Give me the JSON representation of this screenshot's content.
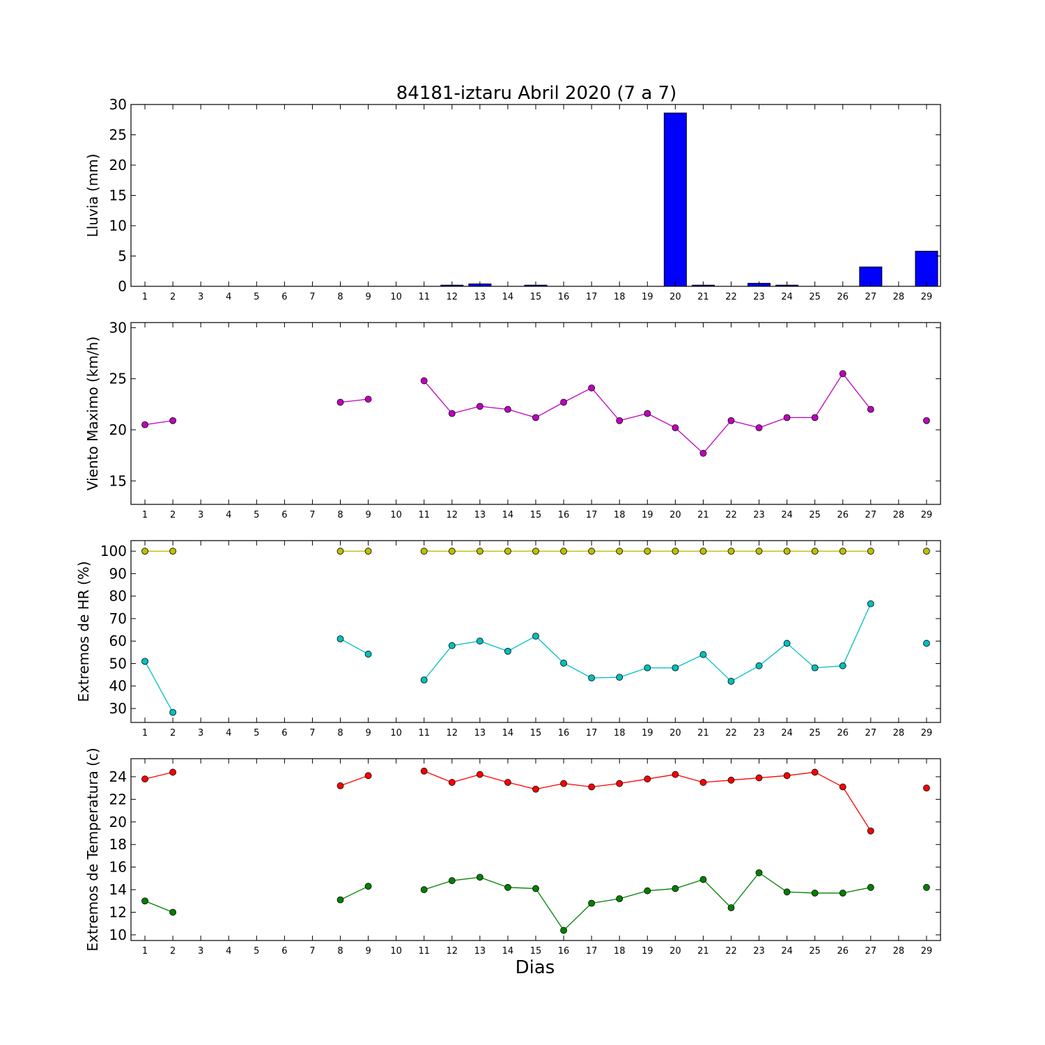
{
  "chart_data": [
    {
      "id": "rain",
      "type": "bar",
      "title": "84181-iztaru Abril 2020  (7 a 7)",
      "ylabel": "Lluvia (mm)",
      "xlabel": "",
      "x": [
        1,
        2,
        3,
        4,
        5,
        6,
        7,
        8,
        9,
        10,
        11,
        12,
        13,
        14,
        15,
        16,
        17,
        18,
        19,
        20,
        21,
        22,
        23,
        24,
        25,
        26,
        27,
        28,
        29
      ],
      "ylim": [
        0,
        30
      ],
      "yticks": [
        0,
        5,
        10,
        15,
        20,
        25,
        30
      ],
      "series": [
        {
          "color": "#0000ff",
          "values": [
            0,
            0,
            0,
            0,
            0,
            0,
            0,
            0,
            0,
            0,
            0,
            0.2,
            0.4,
            0,
            0.2,
            0,
            0,
            0,
            0,
            28.6,
            0.2,
            0,
            0.5,
            0.2,
            0,
            0,
            3.2,
            null,
            5.8
          ]
        }
      ]
    },
    {
      "id": "wind",
      "type": "line",
      "title": "",
      "ylabel": "Viento Maximo (km/h)",
      "xlabel": "",
      "x": [
        1,
        2,
        3,
        4,
        5,
        6,
        7,
        8,
        9,
        10,
        11,
        12,
        13,
        14,
        15,
        16,
        17,
        18,
        19,
        20,
        21,
        22,
        23,
        24,
        25,
        26,
        27,
        28,
        29
      ],
      "ylim": [
        12.7,
        30.5
      ],
      "yticks": [
        15,
        20,
        25,
        30
      ],
      "series": [
        {
          "color": "#bf00bf",
          "values": [
            20.5,
            20.9,
            null,
            null,
            null,
            null,
            null,
            22.7,
            23.0,
            null,
            24.8,
            21.6,
            22.3,
            22.0,
            21.2,
            22.7,
            24.1,
            20.9,
            21.6,
            20.2,
            17.7,
            20.9,
            20.2,
            21.2,
            21.2,
            25.5,
            22.0,
            null,
            20.9
          ]
        }
      ]
    },
    {
      "id": "hr",
      "type": "line",
      "title": "",
      "ylabel": "Extremos de HR (%)",
      "xlabel": "",
      "x": [
        1,
        2,
        3,
        4,
        5,
        6,
        7,
        8,
        9,
        10,
        11,
        12,
        13,
        14,
        15,
        16,
        17,
        18,
        19,
        20,
        21,
        22,
        23,
        24,
        25,
        26,
        27,
        28,
        29
      ],
      "ylim": [
        23.8,
        104.7
      ],
      "yticks": [
        30,
        40,
        50,
        60,
        70,
        80,
        90,
        100
      ],
      "series": [
        {
          "color": "#bfbf00",
          "values": [
            100,
            100,
            null,
            null,
            null,
            null,
            null,
            100,
            100,
            null,
            100,
            100,
            100,
            100,
            100,
            100,
            100,
            100,
            100,
            100,
            100,
            100,
            100,
            100,
            100,
            100,
            100,
            null,
            100
          ]
        },
        {
          "color": "#00bfbf",
          "values": [
            51,
            28.3,
            null,
            null,
            null,
            null,
            null,
            61,
            54.2,
            null,
            42.7,
            58,
            60,
            55.5,
            62.2,
            50.2,
            43.6,
            43.9,
            48.1,
            48.1,
            54,
            42.1,
            49,
            59,
            48.1,
            49,
            76.6,
            null,
            59
          ]
        }
      ]
    },
    {
      "id": "temp",
      "type": "line",
      "title": "",
      "ylabel": "Extremos de Temperatura (c)",
      "xlabel": "Dias",
      "x": [
        1,
        2,
        3,
        4,
        5,
        6,
        7,
        8,
        9,
        10,
        11,
        12,
        13,
        14,
        15,
        16,
        17,
        18,
        19,
        20,
        21,
        22,
        23,
        24,
        25,
        26,
        27,
        28,
        29
      ],
      "ylim": [
        9.5,
        25.6
      ],
      "yticks": [
        10,
        12,
        14,
        16,
        18,
        20,
        22,
        24
      ],
      "series": [
        {
          "color": "#ff0000",
          "values": [
            23.8,
            24.4,
            null,
            null,
            null,
            null,
            null,
            23.2,
            24.1,
            null,
            24.5,
            23.5,
            24.2,
            23.5,
            22.9,
            23.4,
            23.1,
            23.4,
            23.8,
            24.2,
            23.5,
            23.7,
            23.9,
            24.1,
            24.4,
            23.1,
            19.2,
            null,
            23.0
          ]
        },
        {
          "color": "#008000",
          "values": [
            13.0,
            12.0,
            null,
            null,
            null,
            null,
            null,
            13.1,
            14.3,
            null,
            14.0,
            14.8,
            15.1,
            14.2,
            14.1,
            10.4,
            12.8,
            13.2,
            13.9,
            14.1,
            14.9,
            12.4,
            15.5,
            13.8,
            13.7,
            13.7,
            14.2,
            null,
            14.2
          ]
        }
      ]
    }
  ]
}
